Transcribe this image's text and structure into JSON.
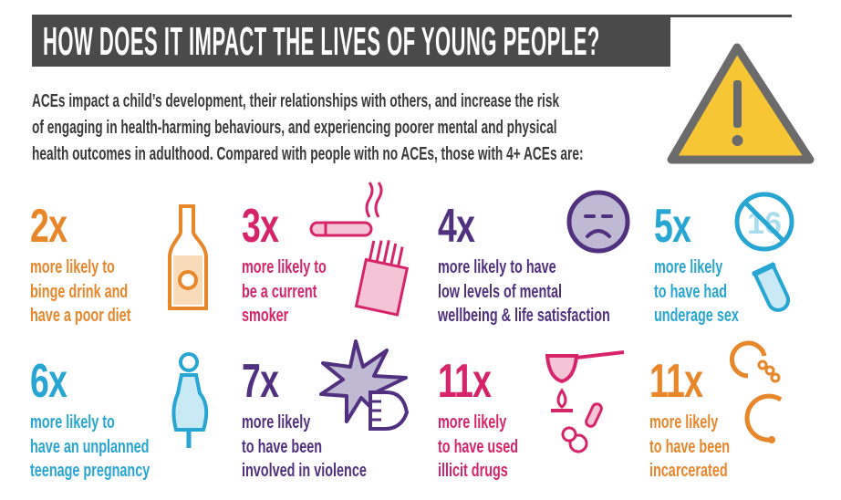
{
  "header": {
    "title": "HOW DOES IT IMPACT THE LIVES OF YOUNG PEOPLE?"
  },
  "intro": {
    "lines": [
      "ACEs impact a child’s development, their relationships with others, and increase the risk",
      "of engaging in health-harming behaviours, and experiencing poorer mental and physical",
      "health outcomes in adulthood. Compared with people with no ACEs, those with 4+ ACEs are:"
    ]
  },
  "colors": {
    "orange": "#e8862a",
    "pink": "#d6246b",
    "purple": "#51307f",
    "blue": "#27a6d4",
    "dark": "#4a4a4a",
    "yellow": "#f6c634"
  },
  "stats": [
    {
      "value": "2x",
      "lines": [
        "more likely to",
        "binge drink and",
        "have a poor diet"
      ],
      "icon": "bottle-icon"
    },
    {
      "value": "3x",
      "lines": [
        "more likely to",
        "be a current",
        "smoker"
      ],
      "icon": "cigarette-icon"
    },
    {
      "value": "4x",
      "lines": [
        "more likely to have",
        "low levels of mental",
        "wellbeing & life satisfaction"
      ],
      "icon": "sad-face-icon"
    },
    {
      "value": "5x",
      "lines": [
        "more likely",
        "to have had",
        "underage sex"
      ],
      "icon": "no-under-16-icon"
    },
    {
      "value": "6x",
      "lines": [
        "more likely to",
        "have an unplanned",
        "teenage pregnancy"
      ],
      "icon": "pregnant-woman-icon"
    },
    {
      "value": "7x",
      "lines": [
        "more likely",
        "to have been",
        "involved in violence"
      ],
      "icon": "fist-punch-icon"
    },
    {
      "value": "11x",
      "lines": [
        "more likely",
        "to have used",
        "illicit drugs"
      ],
      "icon": "drugs-spoon-icon"
    },
    {
      "value": "11x",
      "lines": [
        "more likely",
        "to have been",
        "incarcerated"
      ],
      "icon": "handcuffs-icon"
    }
  ],
  "icons": {
    "age_label": "16"
  }
}
